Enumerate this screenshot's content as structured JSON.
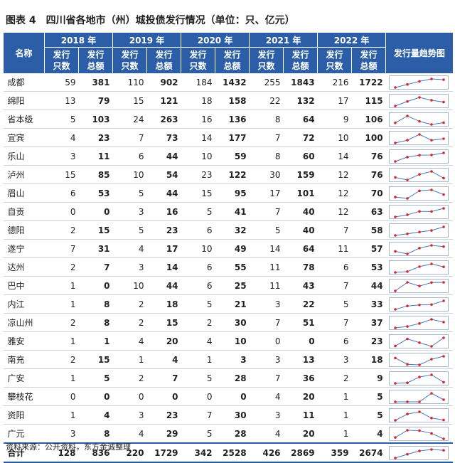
{
  "header": {
    "label": "图表 4",
    "title": "四川省各地市（州）城投债发行情况（单位：只、亿元）"
  },
  "table": {
    "name_header": "名称",
    "years": [
      "2018 年",
      "2019 年",
      "2020 年",
      "2021 年",
      "2022 年"
    ],
    "sub_headers": [
      "发行只数",
      "发行总额"
    ],
    "trend_header": "发行量趋势图",
    "rows": [
      [
        "成都",
        59,
        381,
        110,
        902,
        184,
        1432,
        255,
        1843,
        216,
        1722
      ],
      [
        "绵阳",
        13,
        79,
        15,
        121,
        18,
        158,
        22,
        132,
        17,
        115
      ],
      [
        "省本级",
        5,
        103,
        24,
        263,
        16,
        136,
        8,
        64,
        9,
        106
      ],
      [
        "宜宾",
        4,
        23,
        7,
        73,
        14,
        177,
        7,
        72,
        10,
        100
      ],
      [
        "乐山",
        3,
        11,
        6,
        44,
        10,
        59,
        8,
        60,
        14,
        76
      ],
      [
        "泸州",
        15,
        85,
        10,
        54,
        23,
        122,
        30,
        159,
        12,
        76
      ],
      [
        "眉山",
        6,
        53,
        5,
        44,
        15,
        95,
        17,
        101,
        12,
        70
      ],
      [
        "自贡",
        0,
        0,
        3,
        16,
        5,
        41,
        7,
        40,
        12,
        63
      ],
      [
        "德阳",
        2,
        15,
        5,
        23,
        6,
        32,
        5,
        40,
        7,
        58
      ],
      [
        "遂宁",
        7,
        31,
        4,
        17,
        10,
        49,
        14,
        64,
        11,
        57
      ],
      [
        "达州",
        2,
        7,
        3,
        14,
        6,
        55,
        11,
        78,
        6,
        53
      ],
      [
        "巴中",
        1,
        0,
        10,
        44,
        6,
        25,
        11,
        43,
        7,
        44
      ],
      [
        "内江",
        1,
        8,
        2,
        18,
        5,
        21,
        3,
        22,
        5,
        33
      ],
      [
        "凉山州",
        2,
        8,
        2,
        15,
        2,
        30,
        7,
        51,
        7,
        37
      ],
      [
        "雅安",
        1,
        1,
        4,
        20,
        4,
        10,
        0,
        0,
        6,
        23
      ],
      [
        "南充",
        2,
        15,
        1,
        4,
        1,
        3,
        3,
        13,
        3,
        18
      ],
      [
        "广安",
        1,
        5,
        2,
        7,
        5,
        28,
        7,
        36,
        2,
        9
      ],
      [
        "攀枝花",
        0,
        0,
        0,
        0,
        0,
        0,
        4,
        20,
        1,
        5
      ],
      [
        "资阳",
        1,
        4,
        3,
        23,
        7,
        30,
        3,
        11,
        1,
        5
      ],
      [
        "广元",
        3,
        8,
        4,
        29,
        5,
        28,
        4,
        20,
        1,
        4
      ]
    ],
    "total": [
      "合计",
      128,
      836,
      220,
      1729,
      342,
      2528,
      426,
      2869,
      359,
      2674
    ]
  },
  "source": "资料来源：公开资料，东方金诚整理"
}
